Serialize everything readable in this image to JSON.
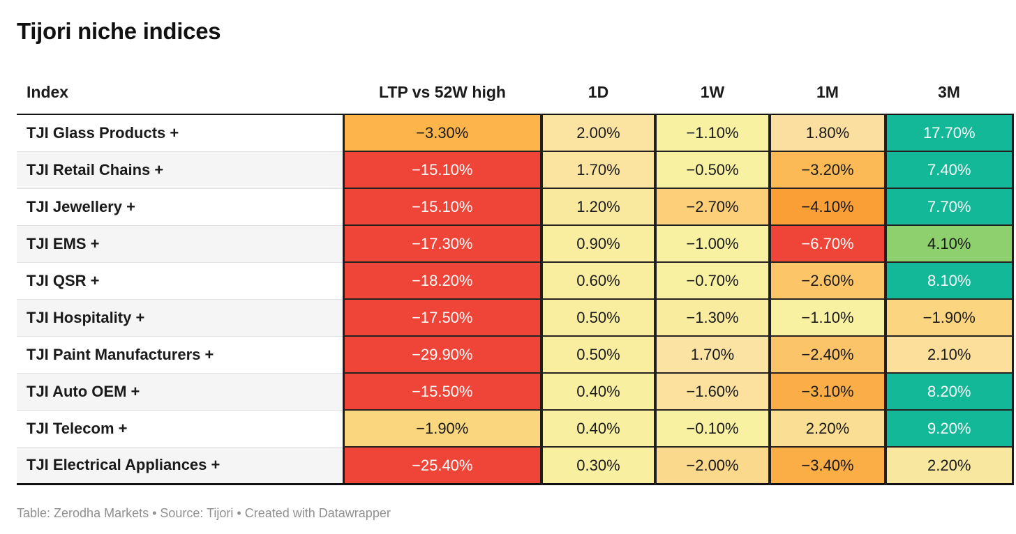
{
  "title": "Tijori niche indices",
  "footer": "Table: Zerodha Markets • Source: Tijori • Created with Datawrapper",
  "columns": [
    "Index",
    "LTP vs 52W high",
    "1D",
    "1W",
    "1M",
    "3M"
  ],
  "colors": {
    "negative_strong": "#EF4538",
    "positive_strong": "#13B899",
    "positive_mild": "#8FD06E",
    "neutral_yellow": "#F8F1A1",
    "row_alt_bg": "#f5f5f5",
    "border_dark": "#1e1e1e",
    "footer_text": "#8f8f8f"
  },
  "table": {
    "rows": [
      {
        "index": "TJI Glass Products +",
        "cells": [
          {
            "v": "−3.30%",
            "bg": "#FDB44A",
            "fg": "#1a1a1a"
          },
          {
            "v": "2.00%",
            "bg": "#FBE3A2",
            "fg": "#1a1a1a"
          },
          {
            "v": "−1.10%",
            "bg": "#F8F1A1",
            "fg": "#1a1a1a"
          },
          {
            "v": "1.80%",
            "bg": "#FBDFA0",
            "fg": "#1a1a1a"
          },
          {
            "v": "17.70%",
            "bg": "#13B899",
            "fg": "#ffffff"
          }
        ]
      },
      {
        "index": "TJI Retail Chains +",
        "cells": [
          {
            "v": "−15.10%",
            "bg": "#EF4538",
            "fg": "#ffffff"
          },
          {
            "v": "1.70%",
            "bg": "#FBE4A0",
            "fg": "#1a1a1a"
          },
          {
            "v": "−0.50%",
            "bg": "#F8F1A1",
            "fg": "#1a1a1a"
          },
          {
            "v": "−3.20%",
            "bg": "#FBBA55",
            "fg": "#1a1a1a"
          },
          {
            "v": "7.40%",
            "bg": "#13B899",
            "fg": "#ffffff"
          }
        ]
      },
      {
        "index": "TJI Jewellery +",
        "cells": [
          {
            "v": "−15.10%",
            "bg": "#EF4538",
            "fg": "#ffffff"
          },
          {
            "v": "1.20%",
            "bg": "#F9E99F",
            "fg": "#1a1a1a"
          },
          {
            "v": "−2.70%",
            "bg": "#FCCF78",
            "fg": "#1a1a1a"
          },
          {
            "v": "−4.10%",
            "bg": "#FA9E36",
            "fg": "#1a1a1a"
          },
          {
            "v": "7.70%",
            "bg": "#13B899",
            "fg": "#ffffff"
          }
        ]
      },
      {
        "index": "TJI EMS +",
        "cells": [
          {
            "v": "−17.30%",
            "bg": "#EF4538",
            "fg": "#ffffff"
          },
          {
            "v": "0.90%",
            "bg": "#F9EDA0",
            "fg": "#1a1a1a"
          },
          {
            "v": "−1.00%",
            "bg": "#F8F1A1",
            "fg": "#1a1a1a"
          },
          {
            "v": "−6.70%",
            "bg": "#EF4538",
            "fg": "#ffffff"
          },
          {
            "v": "4.10%",
            "bg": "#8FD06E",
            "fg": "#1a1a1a"
          }
        ]
      },
      {
        "index": "TJI QSR +",
        "cells": [
          {
            "v": "−18.20%",
            "bg": "#EF4538",
            "fg": "#ffffff"
          },
          {
            "v": "0.60%",
            "bg": "#F9EEA0",
            "fg": "#1a1a1a"
          },
          {
            "v": "−0.70%",
            "bg": "#F8F1A1",
            "fg": "#1a1a1a"
          },
          {
            "v": "−2.60%",
            "bg": "#FCC568",
            "fg": "#1a1a1a"
          },
          {
            "v": "8.10%",
            "bg": "#13B899",
            "fg": "#ffffff"
          }
        ]
      },
      {
        "index": "TJI Hospitality +",
        "cells": [
          {
            "v": "−17.50%",
            "bg": "#EF4538",
            "fg": "#ffffff"
          },
          {
            "v": "0.50%",
            "bg": "#F9EEA0",
            "fg": "#1a1a1a"
          },
          {
            "v": "−1.30%",
            "bg": "#FAEC9F",
            "fg": "#1a1a1a"
          },
          {
            "v": "−1.10%",
            "bg": "#F8F1A1",
            "fg": "#1a1a1a"
          },
          {
            "v": "−1.90%",
            "bg": "#FBD580",
            "fg": "#1a1a1a"
          }
        ]
      },
      {
        "index": "TJI Paint Manufacturers +",
        "cells": [
          {
            "v": "−29.90%",
            "bg": "#EF4538",
            "fg": "#ffffff"
          },
          {
            "v": "0.50%",
            "bg": "#F9EEA0",
            "fg": "#1a1a1a"
          },
          {
            "v": "1.70%",
            "bg": "#FBE3A4",
            "fg": "#1a1a1a"
          },
          {
            "v": "−2.40%",
            "bg": "#FCC468",
            "fg": "#1a1a1a"
          },
          {
            "v": "2.10%",
            "bg": "#FBDF9B",
            "fg": "#1a1a1a"
          }
        ]
      },
      {
        "index": "TJI Auto OEM +",
        "cells": [
          {
            "v": "−15.50%",
            "bg": "#EF4538",
            "fg": "#ffffff"
          },
          {
            "v": "0.40%",
            "bg": "#F9EFA0",
            "fg": "#1a1a1a"
          },
          {
            "v": "−1.60%",
            "bg": "#FBE09E",
            "fg": "#1a1a1a"
          },
          {
            "v": "−3.10%",
            "bg": "#FBAE47",
            "fg": "#1a1a1a"
          },
          {
            "v": "8.20%",
            "bg": "#13B899",
            "fg": "#ffffff"
          }
        ]
      },
      {
        "index": "TJI Telecom +",
        "cells": [
          {
            "v": "−1.90%",
            "bg": "#FAD77E",
            "fg": "#1a1a1a"
          },
          {
            "v": "0.40%",
            "bg": "#F9EFA0",
            "fg": "#1a1a1a"
          },
          {
            "v": "−0.10%",
            "bg": "#F8F1A1",
            "fg": "#1a1a1a"
          },
          {
            "v": "2.20%",
            "bg": "#FADE93",
            "fg": "#1a1a1a"
          },
          {
            "v": "9.20%",
            "bg": "#13B899",
            "fg": "#ffffff"
          }
        ]
      },
      {
        "index": "TJI Electrical Appliances +",
        "cells": [
          {
            "v": "−25.40%",
            "bg": "#EF4538",
            "fg": "#ffffff"
          },
          {
            "v": "0.30%",
            "bg": "#F9EFA0",
            "fg": "#1a1a1a"
          },
          {
            "v": "−2.00%",
            "bg": "#FBD98C",
            "fg": "#1a1a1a"
          },
          {
            "v": "−3.40%",
            "bg": "#FBAD46",
            "fg": "#1a1a1a"
          },
          {
            "v": "2.20%",
            "bg": "#F8E79E",
            "fg": "#1a1a1a"
          }
        ]
      }
    ]
  },
  "chart_data": {
    "type": "table",
    "title": "Tijori niche indices",
    "columns": [
      "Index",
      "LTP vs 52W high",
      "1D",
      "1W",
      "1M",
      "3M"
    ],
    "unit": "percent",
    "rows": [
      {
        "index": "TJI Glass Products",
        "values": [
          -3.3,
          2.0,
          -1.1,
          1.8,
          17.7
        ]
      },
      {
        "index": "TJI Retail Chains",
        "values": [
          -15.1,
          1.7,
          -0.5,
          -3.2,
          7.4
        ]
      },
      {
        "index": "TJI Jewellery",
        "values": [
          -15.1,
          1.2,
          -2.7,
          -4.1,
          7.7
        ]
      },
      {
        "index": "TJI EMS",
        "values": [
          -17.3,
          0.9,
          -1.0,
          -6.7,
          4.1
        ]
      },
      {
        "index": "TJI QSR",
        "values": [
          -18.2,
          0.6,
          -0.7,
          -2.6,
          8.1
        ]
      },
      {
        "index": "TJI Hospitality",
        "values": [
          -17.5,
          0.5,
          -1.3,
          -1.1,
          -1.9
        ]
      },
      {
        "index": "TJI Paint Manufacturers",
        "values": [
          -29.9,
          0.5,
          1.7,
          -2.4,
          2.1
        ]
      },
      {
        "index": "TJI Auto OEM",
        "values": [
          -15.5,
          0.4,
          -1.6,
          -3.1,
          8.2
        ]
      },
      {
        "index": "TJI Telecom",
        "values": [
          -1.9,
          0.4,
          -0.1,
          2.2,
          9.2
        ]
      },
      {
        "index": "TJI Electrical Appliances",
        "values": [
          -25.4,
          0.3,
          -2.0,
          -3.4,
          2.2
        ]
      }
    ],
    "notes": "Heatmap-colored table: red = strongly negative, yellow = near zero, orange = moderately negative, teal/green = positive",
    "source": "Table: Zerodha Markets • Source: Tijori • Created with Datawrapper"
  }
}
